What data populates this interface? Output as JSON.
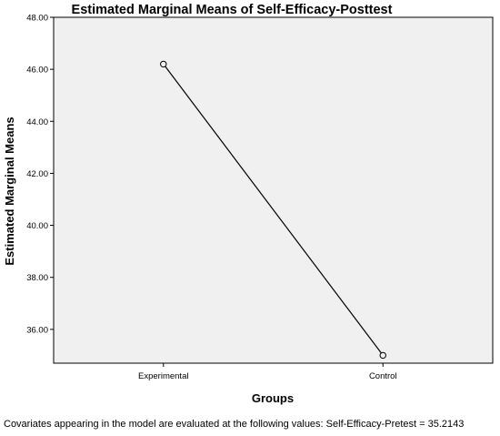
{
  "chart_data": {
    "type": "line",
    "title": "Estimated Marginal Means of Self-Efficacy-Posttest",
    "xlabel": "Groups",
    "ylabel": "Estimated Marginal Means",
    "categories": [
      "Experimental",
      "Control"
    ],
    "series": [
      {
        "values": [
          46.2,
          35.0
        ]
      }
    ],
    "ylim": [
      34.7,
      48.0
    ],
    "yticks": [
      "36.00",
      "38.00",
      "40.00",
      "42.00",
      "44.00",
      "46.00",
      "48.00"
    ],
    "grid": false,
    "legend": "none",
    "colors": {
      "plot_background": "#f0f0f0",
      "line": "#000000",
      "axis": "#000000"
    }
  },
  "footnote": "Covariates appearing in the model are evaluated at the following values: Self-Efficacy-Pretest = 35.2143"
}
